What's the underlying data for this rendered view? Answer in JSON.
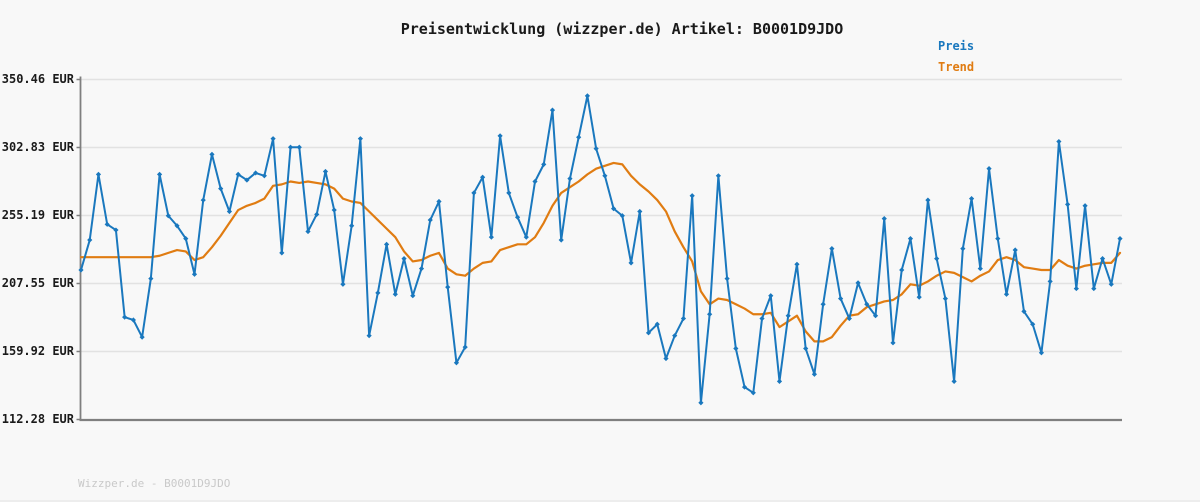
{
  "title": "Preisentwicklung (wizzper.de) Artikel: B0001D9JDO",
  "legend": {
    "preis_label": "Preis",
    "trend_label": "Trend"
  },
  "footer": "Wizzper.de - B0001D9JDO",
  "colors": {
    "preis": "#1a78be",
    "trend": "#e07c12",
    "axis": "#7f7f7f",
    "grid": "#e2e2e2",
    "background": "#f8f8f8",
    "title_text": "#1a1a1a",
    "footer_text": "#c9c9c9"
  },
  "chart_data": {
    "type": "line",
    "title": "Preisentwicklung (wizzper.de) Artikel: B0001D9JDO",
    "xlabel": "",
    "ylabel": "EUR",
    "ylim": [
      112.28,
      350.46
    ],
    "grid": "horizontal",
    "legend_position": "top-right",
    "x_tick_labels_visible": false,
    "y_ticks": [
      "350.46 EUR",
      "302.83 EUR",
      "255.19 EUR",
      "207.55 EUR",
      "159.92 EUR",
      "112.28 EUR"
    ],
    "y_tick_values": [
      350.46,
      302.83,
      255.19,
      207.55,
      159.92,
      112.28
    ],
    "series": [
      {
        "name": "Preis",
        "color": "#1a78be",
        "marker": "diamond",
        "values": [
          217,
          238,
          284,
          249,
          245,
          184,
          182,
          170,
          211,
          284,
          255,
          248,
          239,
          214,
          266,
          298,
          274,
          258,
          284,
          280,
          285,
          283,
          309,
          229,
          303,
          303,
          244,
          256,
          286,
          259,
          207,
          248,
          309,
          171,
          201,
          235,
          200,
          225,
          199,
          218,
          252,
          265,
          205,
          152,
          163,
          271,
          282,
          240,
          311,
          271,
          254,
          240,
          279,
          291,
          329,
          238,
          281,
          310,
          339,
          302,
          283,
          260,
          255,
          222,
          258,
          173,
          179,
          155,
          171,
          183,
          269,
          124,
          186,
          283,
          211,
          162,
          135,
          131,
          183,
          199,
          139,
          185,
          221,
          162,
          144,
          193,
          232,
          197,
          183,
          208,
          193,
          185,
          253,
          166,
          217,
          239,
          198,
          266,
          225,
          197,
          139,
          232,
          267,
          218,
          288,
          239,
          200,
          231,
          188,
          179,
          159,
          209,
          307,
          263,
          204,
          262,
          204,
          225,
          207,
          239
        ]
      },
      {
        "name": "Trend",
        "color": "#e07c12",
        "marker": "none",
        "values": [
          226,
          226,
          226,
          226,
          226,
          226,
          226,
          226,
          226,
          227,
          229,
          231,
          230,
          224,
          226,
          233,
          241,
          250,
          259,
          262,
          264,
          267,
          276,
          277,
          279,
          278,
          279,
          278,
          277,
          274,
          267,
          265,
          264,
          258,
          252,
          246,
          240,
          230,
          223,
          224,
          227,
          229,
          218,
          214,
          213,
          218,
          222,
          223,
          231,
          233,
          235,
          235,
          240,
          250,
          262,
          271,
          275,
          279,
          284,
          288,
          290,
          292,
          291,
          283,
          277,
          272,
          266,
          258,
          244,
          233,
          223,
          202,
          193,
          197,
          196,
          193,
          190,
          186,
          186,
          187,
          177,
          181,
          185,
          174,
          167,
          167,
          170,
          178,
          185,
          186,
          191,
          193,
          195,
          196,
          200,
          207,
          206,
          209,
          213,
          216,
          215,
          212,
          209,
          213,
          216,
          224,
          226,
          224,
          219,
          218,
          217,
          217,
          224,
          220,
          218,
          220,
          221,
          222,
          222,
          229
        ]
      }
    ]
  }
}
